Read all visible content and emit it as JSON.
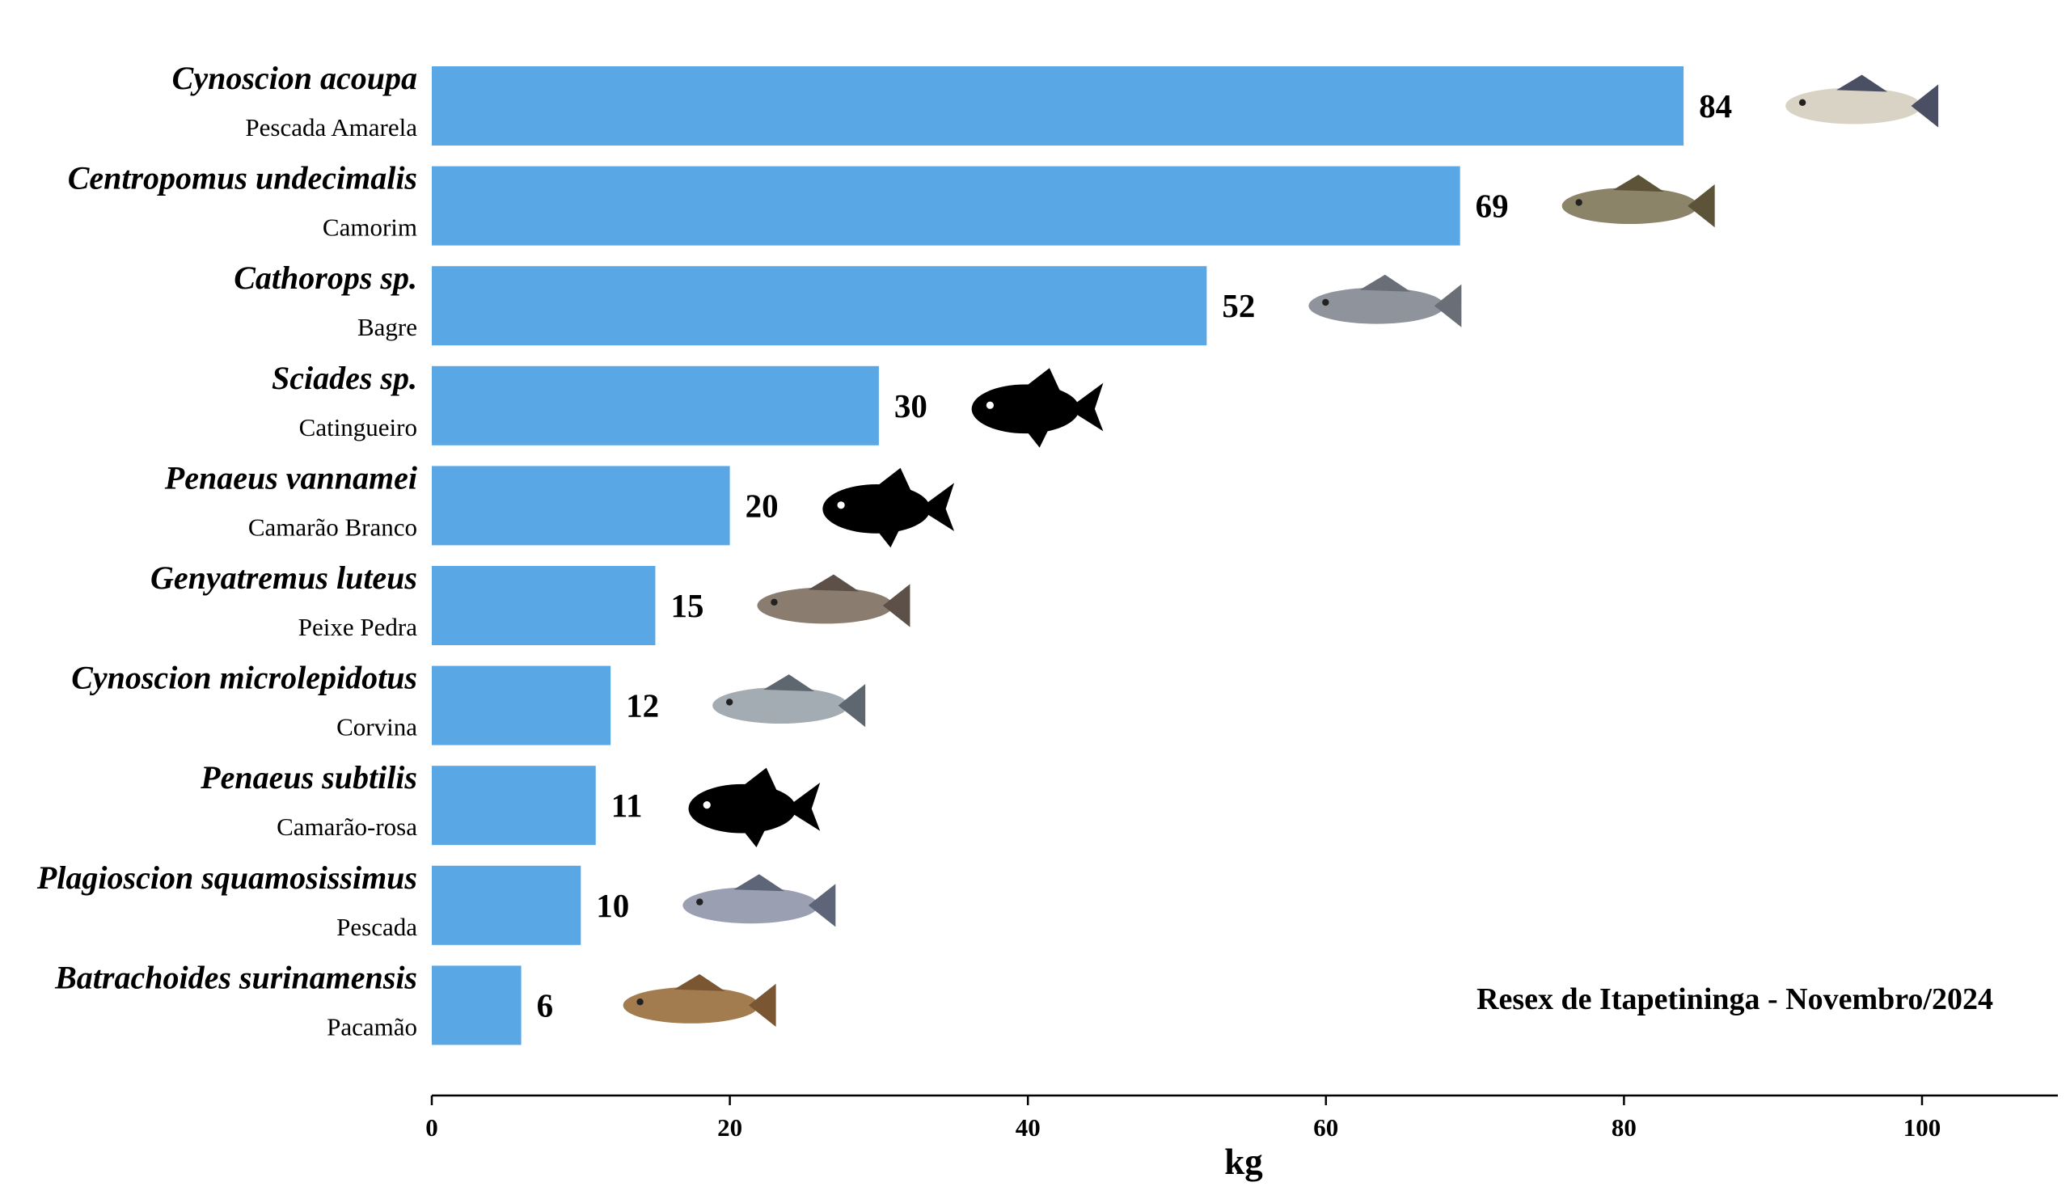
{
  "chart_data": {
    "type": "bar",
    "orientation": "horizontal",
    "categories": [
      {
        "scientific": "Cynoscion acoupa",
        "common": "Pescada Amarela",
        "icon": "fish-photo-cynoscion-acoupa-icon"
      },
      {
        "scientific": "Centropomus undecimalis",
        "common": "Camorim",
        "icon": "fish-photo-centropomus-undecimalis-icon"
      },
      {
        "scientific": "Cathorops sp.",
        "common": "Bagre",
        "icon": "fish-photo-cathorops-icon"
      },
      {
        "scientific": "Sciades sp.",
        "common": "Catingueiro",
        "icon": "fish-silhouette-icon"
      },
      {
        "scientific": "Penaeus vannamei",
        "common": "Camarão Branco",
        "icon": "fish-silhouette-icon"
      },
      {
        "scientific": "Genyatremus luteus",
        "common": "Peixe Pedra",
        "icon": "fish-photo-genyatremus-luteus-icon"
      },
      {
        "scientific": "Cynoscion microlepidotus",
        "common": "Corvina",
        "icon": "fish-photo-cynoscion-microlepidotus-icon"
      },
      {
        "scientific": "Penaeus subtilis",
        "common": "Camarão-rosa",
        "icon": "fish-silhouette-icon"
      },
      {
        "scientific": "Plagioscion squamosissimus",
        "common": "Pescada",
        "icon": "fish-photo-plagioscion-squamosissimus-icon"
      },
      {
        "scientific": "Batrachoides surinamensis",
        "common": "Pacamão",
        "icon": "fish-photo-batrachoides-surinamensis-icon"
      }
    ],
    "values": [
      84,
      69,
      52,
      30,
      20,
      15,
      12,
      11,
      10,
      6
    ],
    "xlabel": "kg",
    "xlim": [
      0,
      109
    ],
    "xticks": [
      0,
      20,
      40,
      60,
      80,
      100
    ],
    "annotation": "Resex de Itapetininga - Novembro/2024",
    "grid": false,
    "bar_color": "#5aa7e6"
  }
}
